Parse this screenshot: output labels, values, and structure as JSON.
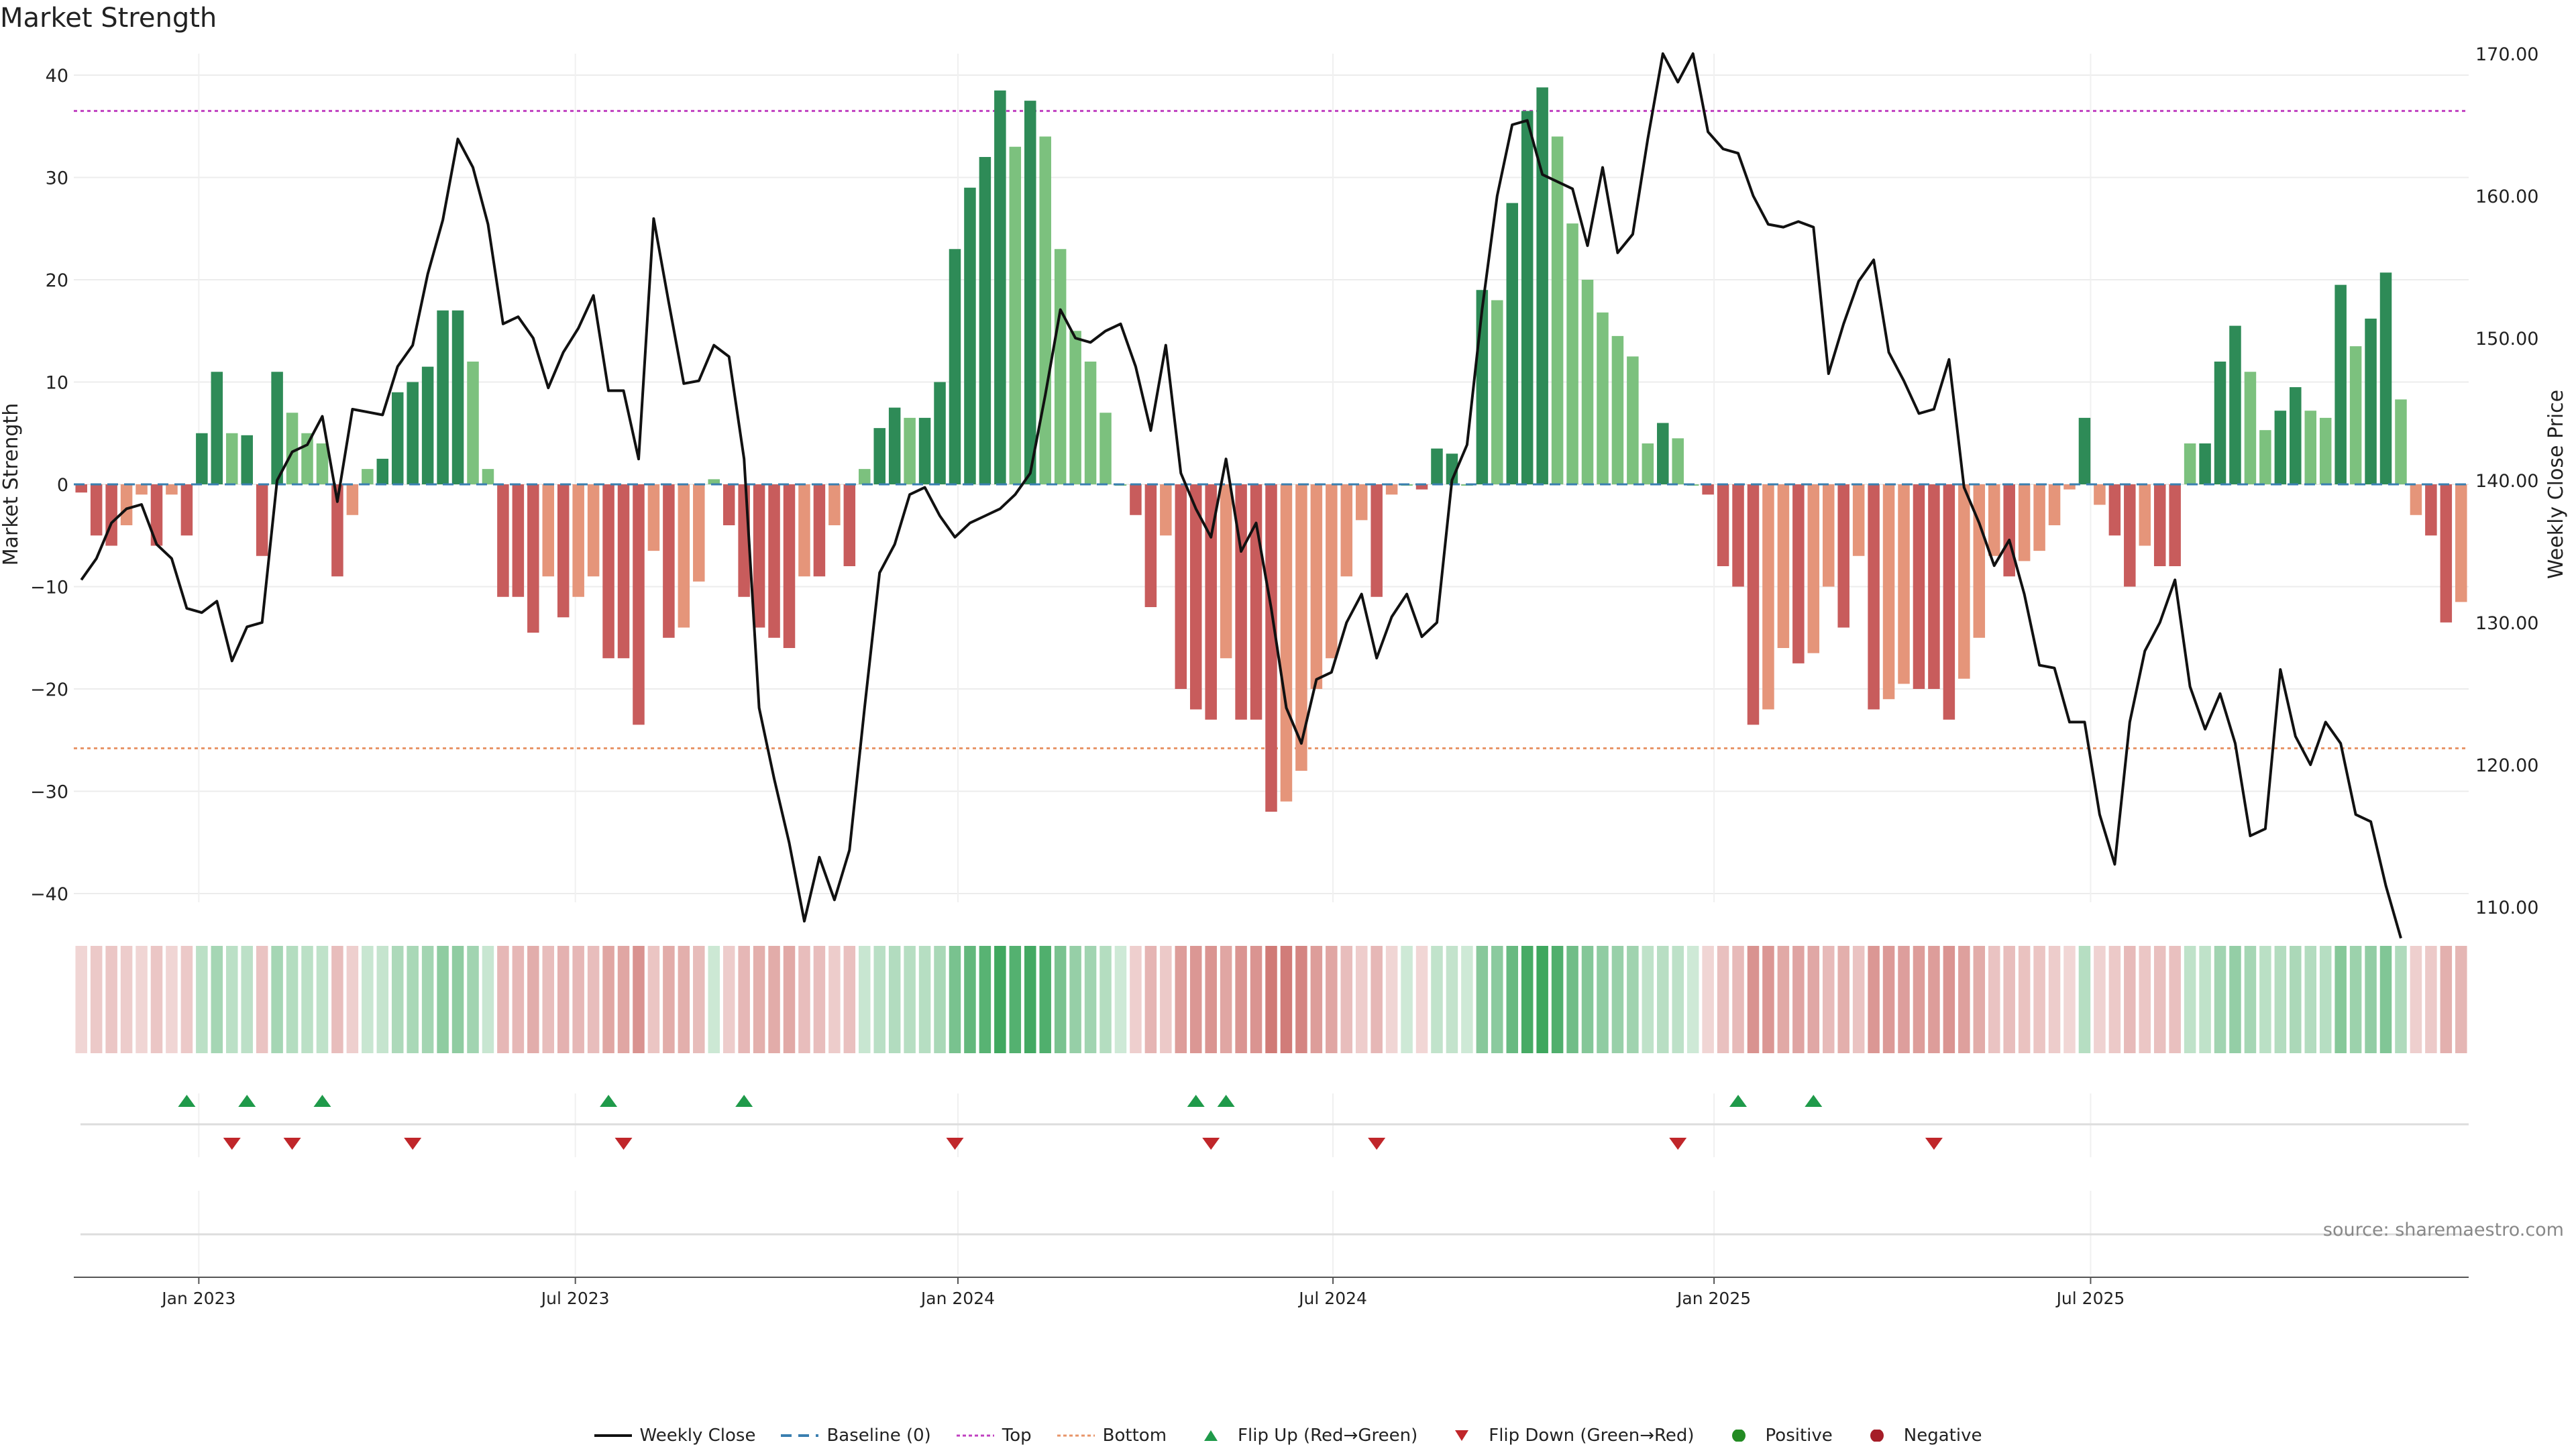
{
  "chart_data": {
    "type": "bar+line",
    "title": "Market Strength",
    "ylabel_left": "Market Strength",
    "ylabel_right": "Weekly Close Price",
    "source": "source: sharemaestro.com",
    "ylim_left": [
      -42,
      42
    ],
    "ylim_right": [
      108,
      172
    ],
    "left_ticks": [
      "40",
      "30",
      "20",
      "10",
      "0",
      "−10",
      "−20",
      "−30",
      "−40"
    ],
    "left_tick_values": [
      40,
      30,
      20,
      10,
      0,
      -10,
      -20,
      -30,
      -40
    ],
    "right_ticks": [
      "170.00",
      "160.00",
      "150.00",
      "140.00",
      "130.00",
      "120.00",
      "110.00"
    ],
    "right_tick_values": [
      170,
      160,
      150,
      140,
      130,
      120,
      110
    ],
    "x_ticks": [
      "Jan 2023",
      "Jul 2023",
      "Jan 2024",
      "Jul 2024",
      "Jan 2025",
      "Jul 2025"
    ],
    "x_tick_weeks": [
      8.3,
      33.3,
      58.7,
      83.6,
      108.9,
      133.9
    ],
    "top_line": 36.5,
    "bottom_line": -25.8,
    "strength": [
      -0.8,
      -5,
      -6,
      -4,
      -1,
      -6,
      -1,
      -5,
      5,
      11,
      5,
      4.8,
      -7,
      11,
      7,
      5,
      4,
      -9,
      -3,
      1.5,
      2.5,
      9,
      10,
      11.5,
      17,
      17,
      12,
      1.5,
      -11,
      -11,
      -14.5,
      -9,
      -13,
      -11,
      -9,
      -17,
      -17,
      -23.5,
      -6.5,
      -15,
      -14,
      -9.5,
      0.5,
      -4,
      -11,
      -14,
      -15,
      -16,
      -9,
      -9,
      -4,
      -8,
      1.5,
      5.5,
      7.5,
      6.5,
      6.5,
      10,
      23,
      29,
      32,
      38.5,
      33,
      37.5,
      34,
      23,
      15,
      12,
      7,
      0,
      -3,
      -12,
      -5,
      -20,
      -22,
      -23,
      -17,
      -23,
      -23,
      -32,
      -31,
      -28,
      -20,
      -17,
      -9,
      -3.5,
      -11,
      -1,
      0,
      -0.5,
      3.5,
      3,
      0,
      19,
      18,
      27.5,
      36.5,
      38.8,
      34,
      25.5,
      20,
      16.8,
      14.5,
      12.5,
      4,
      6,
      4.5,
      0,
      -1,
      -8,
      -10,
      -23.5,
      -22,
      -16,
      -17.5,
      -16.5,
      -10,
      -14,
      -7,
      -22,
      -21,
      -19.5,
      -20,
      -20,
      -23,
      -19,
      -15,
      -7,
      -9,
      -7.5,
      -6.5,
      -4,
      -0.5,
      6.5,
      -2,
      -5,
      -10,
      -6,
      -8,
      -8,
      4,
      4,
      12,
      15.5,
      11,
      5.3,
      7.2,
      9.5,
      7.2,
      6.5,
      19.5,
      13.5,
      16.2,
      20.7,
      8.3,
      -3,
      -5,
      -13.5,
      -11.5
    ],
    "price": [
      133,
      134.5,
      137,
      138,
      138.3,
      135.5,
      134.5,
      131,
      130.7,
      131.5,
      127.3,
      129.7,
      130,
      140,
      142,
      142.5,
      144.5,
      138.5,
      145,
      144.8,
      144.6,
      148,
      149.5,
      154.5,
      158.3,
      164,
      162,
      158,
      151,
      151.5,
      150,
      146.5,
      149,
      150.7,
      153,
      146.3,
      146.3,
      141.5,
      158.4,
      152.5,
      146.8,
      147,
      149.5,
      148.7,
      141.5,
      124,
      119,
      114.5,
      109,
      113.5,
      110.5,
      114,
      124,
      133.5,
      135.5,
      139,
      139.5,
      137.5,
      136,
      137,
      137.5,
      138,
      139,
      140.5,
      146,
      152,
      150,
      149.7,
      150.5,
      151,
      148,
      143.5,
      149.5,
      140.5,
      138,
      136,
      141.5,
      135,
      137,
      131,
      124,
      121.5,
      126,
      126.5,
      130,
      132,
      127.5,
      130.4,
      132,
      129,
      130,
      140,
      142.5,
      152,
      160,
      165,
      165.3,
      161.5,
      161,
      160.5,
      156.5,
      162,
      156,
      157.3,
      164,
      170,
      168,
      170,
      164.5,
      163.3,
      163,
      160,
      158,
      157.8,
      158.2,
      157.8,
      147.5,
      151,
      154,
      155.5,
      149,
      147,
      144.7,
      145,
      148.5,
      139.5,
      137,
      134,
      135.8,
      132,
      127,
      126.8,
      123,
      123,
      116.5,
      113,
      123,
      128,
      130,
      133,
      125.5,
      122.5,
      125,
      121.5,
      115,
      115.5,
      126.7,
      122,
      120,
      123,
      121.5,
      116.5,
      116,
      111.5,
      107.8
    ],
    "flip_up_weeks": [
      7,
      11,
      16,
      35,
      44,
      74,
      76,
      110,
      115
    ],
    "flip_down_weeks": [
      10,
      14,
      22,
      36,
      58,
      75,
      86,
      106,
      123
    ],
    "colors": {
      "dark_green": "#2e8b57",
      "light_green": "#7cc17e",
      "dark_red": "#c85c5c",
      "light_red": "#e5957a",
      "price_line": "#111111",
      "top_line": "#c040c0",
      "bottom_line": "#e8966a",
      "baseline": "#3a7fb0",
      "flip_up": "#1f9a4a",
      "flip_down": "#c0262a",
      "positive": "#238b23",
      "negative": "#a51d28"
    },
    "legend": [
      {
        "key": "weekly-close",
        "label": "Weekly Close"
      },
      {
        "key": "baseline",
        "label": "Baseline (0)"
      },
      {
        "key": "top",
        "label": "Top"
      },
      {
        "key": "bottom",
        "label": "Bottom"
      },
      {
        "key": "flip-up",
        "label": "Flip Up (Red→Green)"
      },
      {
        "key": "flip-down",
        "label": "Flip Down (Green→Red)"
      },
      {
        "key": "positive",
        "label": "Positive"
      },
      {
        "key": "negative",
        "label": "Negative"
      }
    ]
  }
}
